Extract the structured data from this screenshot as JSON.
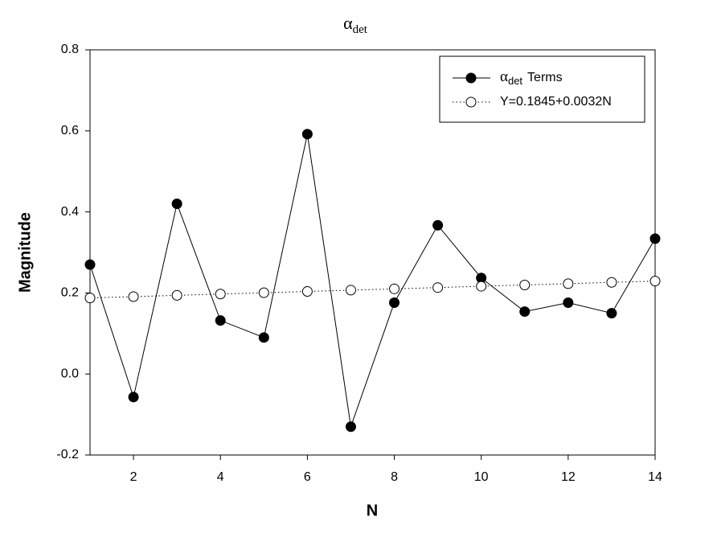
{
  "chart_data": {
    "type": "line",
    "title": "α",
    "title_subscript": "det",
    "x_label": "N",
    "y_label": "Magnitude",
    "x": [
      1,
      2,
      3,
      4,
      5,
      6,
      7,
      8,
      9,
      10,
      11,
      12,
      13,
      14
    ],
    "series": [
      {
        "name": "α",
        "name_subscript": "det",
        "name_suffix": "Terms",
        "color": "#000000",
        "marker_fill": "#000000",
        "line_style": "solid",
        "values": [
          0.27,
          -0.057,
          0.42,
          0.132,
          0.09,
          0.592,
          -0.13,
          0.176,
          0.367,
          0.237,
          0.154,
          0.176,
          0.15,
          0.334
        ]
      },
      {
        "name": "Y=0.1845+0.0032N",
        "color": "#000000",
        "marker_fill": "#ffffff",
        "line_style": "dotted",
        "values": [
          0.1877,
          0.1909,
          0.1941,
          0.1973,
          0.2005,
          0.2037,
          0.2069,
          0.2101,
          0.2133,
          0.2165,
          0.2197,
          0.2229,
          0.2261,
          0.2293
        ]
      }
    ],
    "xlim": [
      1,
      14
    ],
    "xticks": [
      2,
      4,
      6,
      8,
      10,
      12,
      14
    ],
    "ylim": [
      -0.2,
      0.8
    ],
    "yticks": [
      -0.2,
      {
        "value": 0,
        "label": "0.0"
      },
      0.2,
      0.4,
      0.6,
      0.8
    ],
    "legend": "upper-right",
    "grid": false
  }
}
